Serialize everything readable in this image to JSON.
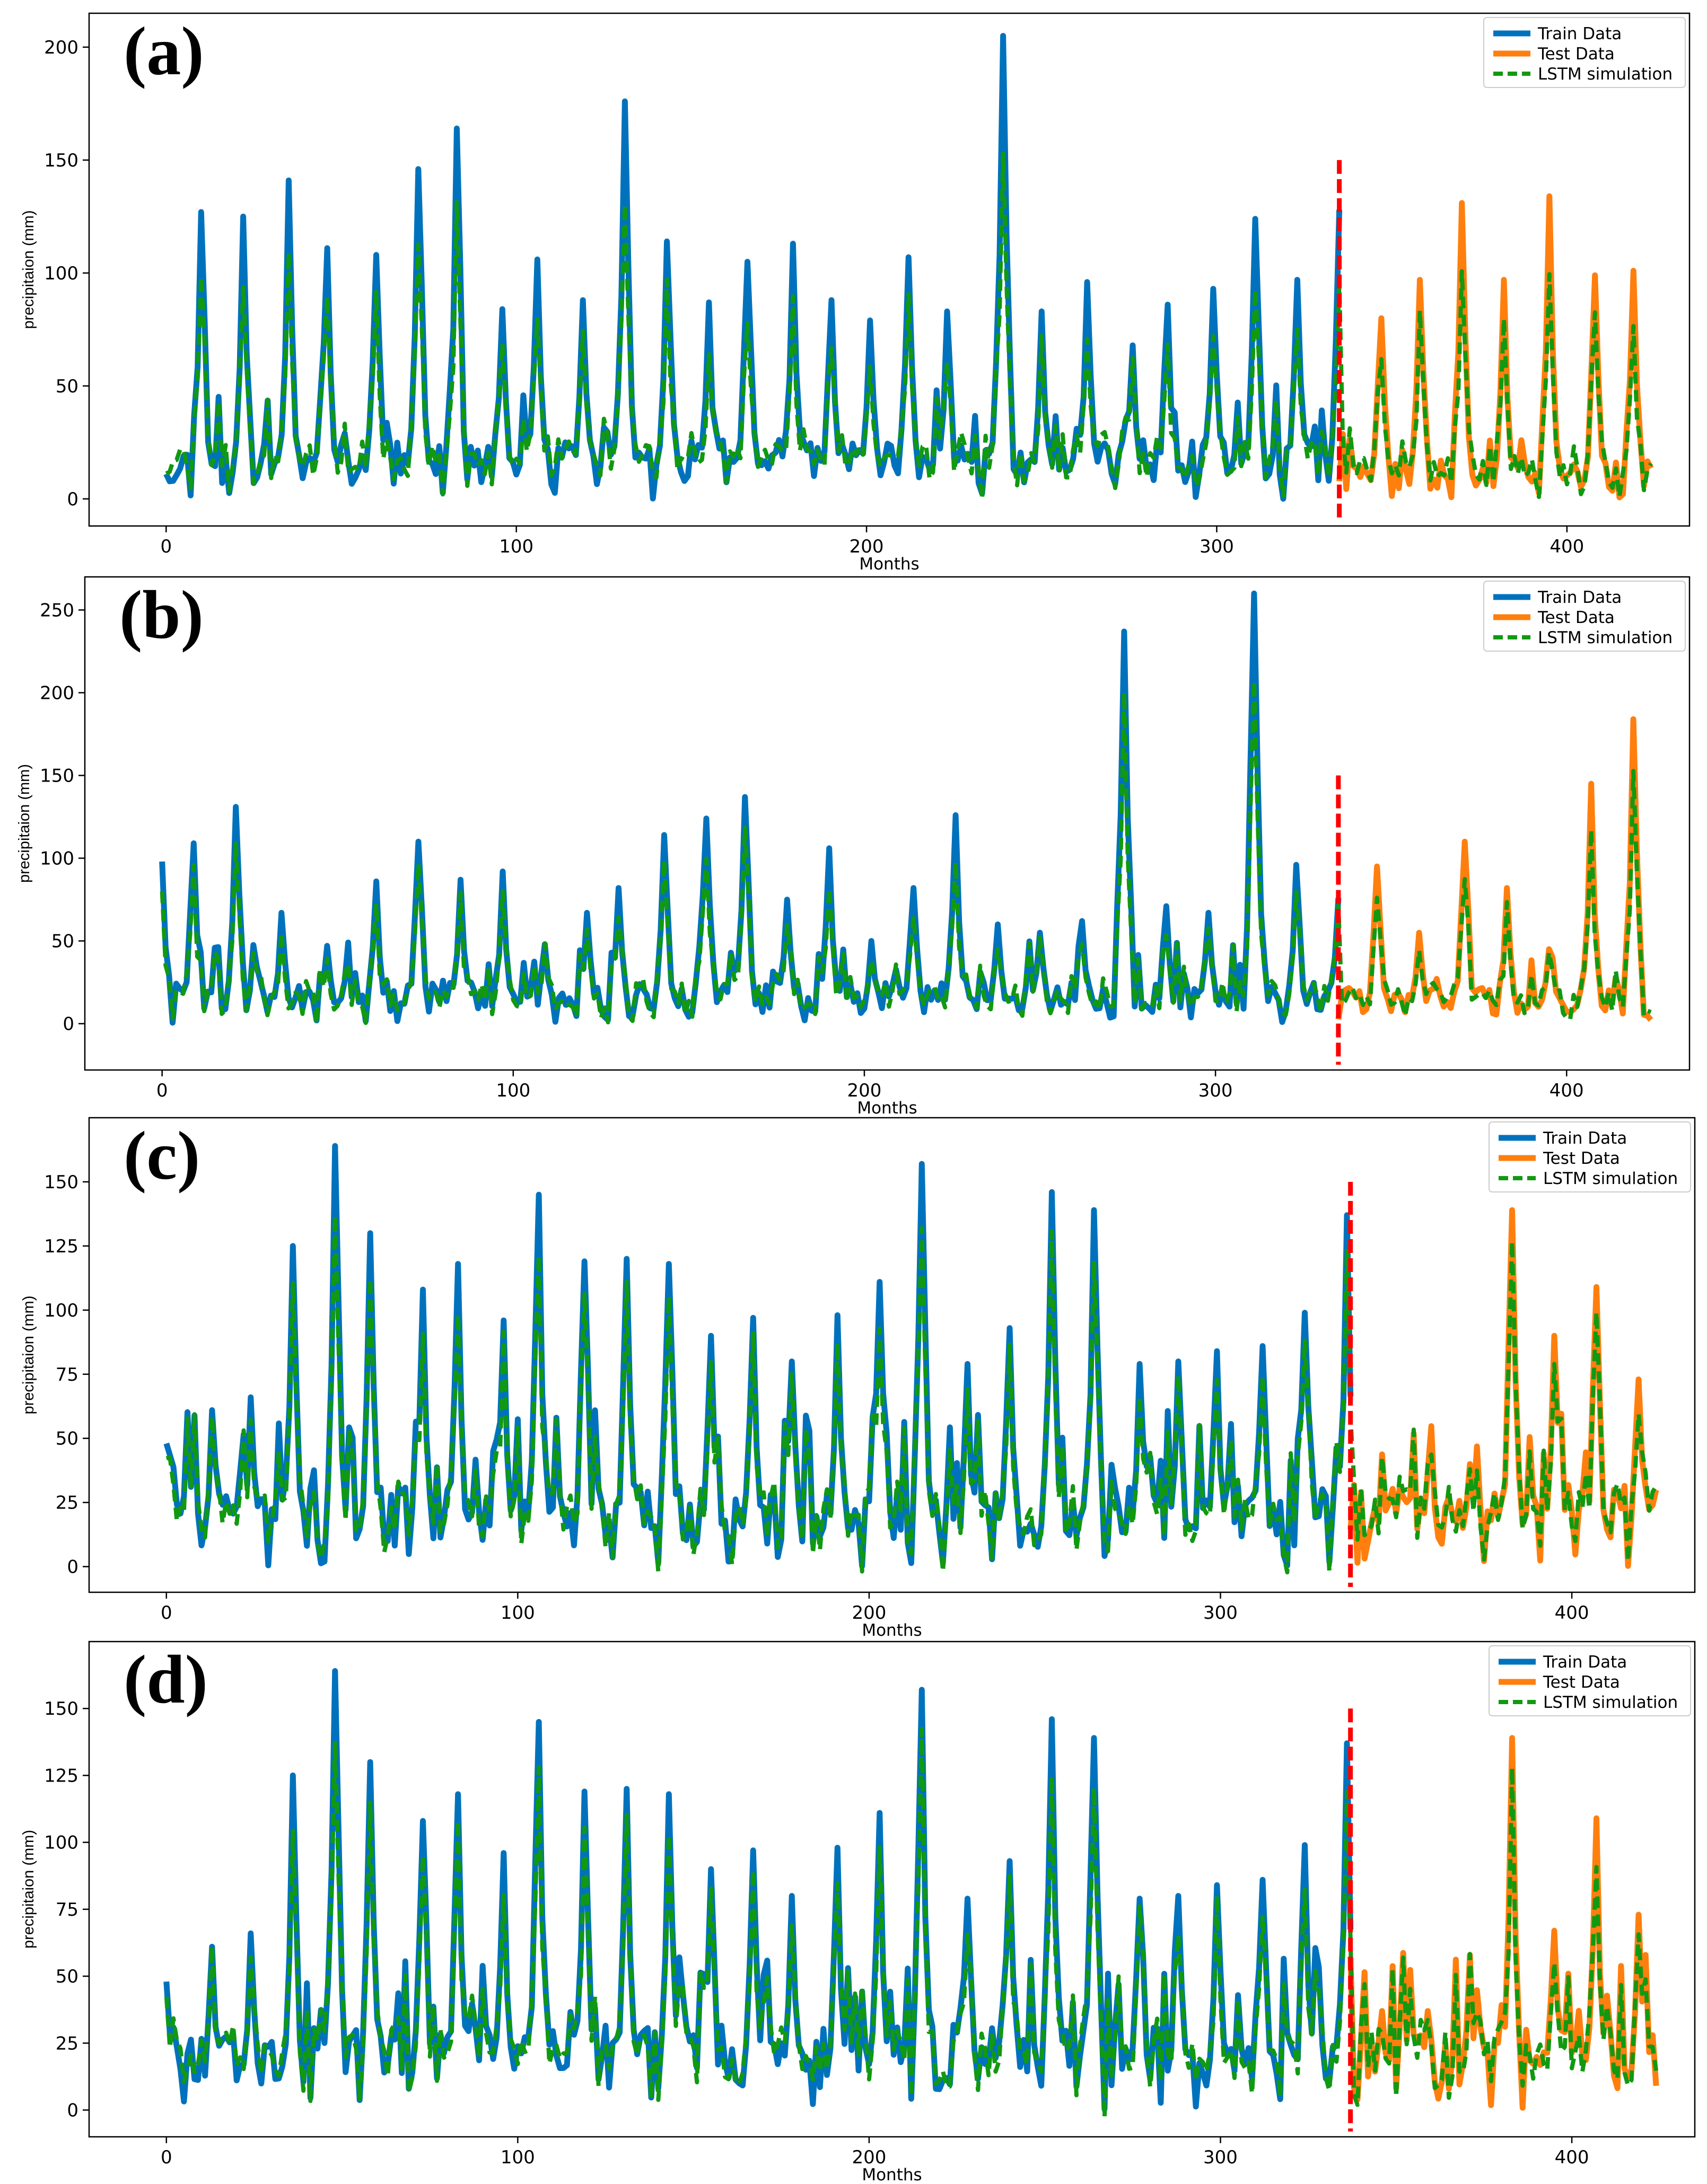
{
  "colors": {
    "train": "#0072BD",
    "test": "#FF7F0E",
    "lstm": "#119911",
    "split": "#FF0000"
  },
  "chart_data": [
    {
      "type": "line",
      "panel_label": "(a)",
      "xlabel": "Months",
      "ylabel": "precipitaion (mm)",
      "xlim": [
        -22,
        435
      ],
      "ylim": [
        -12,
        215
      ],
      "xticks": [
        0,
        100,
        200,
        300,
        400
      ],
      "yticks": [
        0,
        50,
        100,
        150,
        200
      ],
      "split_x": 335,
      "split_top": 150,
      "legend": [
        "Train Data",
        "Test Data",
        "LSTM simulation"
      ],
      "legend_loc": "upper right",
      "series": [
        {
          "name": "Train Data",
          "x_start": 0,
          "x_end": 335,
          "peaks": [
            [
              10,
              127
            ],
            [
              22,
              125
            ],
            [
              35,
              141
            ],
            [
              46,
              111
            ],
            [
              60,
              108
            ],
            [
              72,
              146
            ],
            [
              83,
              164
            ],
            [
              96,
              84
            ],
            [
              106,
              106
            ],
            [
              119,
              88
            ],
            [
              131,
              176
            ],
            [
              143,
              114
            ],
            [
              155,
              87
            ],
            [
              166,
              105
            ],
            [
              179,
              113
            ],
            [
              190,
              88
            ],
            [
              201,
              79
            ],
            [
              212,
              107
            ],
            [
              223,
              83
            ],
            [
              239,
              205
            ],
            [
              250,
              83
            ],
            [
              263,
              96
            ],
            [
              276,
              68
            ],
            [
              286,
              86
            ],
            [
              299,
              93
            ],
            [
              311,
              124
            ],
            [
              323,
              97
            ],
            [
              335,
              128
            ]
          ],
          "base": 18
        },
        {
          "name": "Test Data",
          "x_start": 335,
          "x_end": 424,
          "peaks": [
            [
              347,
              80
            ],
            [
              358,
              97
            ],
            [
              370,
              131
            ],
            [
              382,
              97
            ],
            [
              395,
              134
            ],
            [
              408,
              99
            ],
            [
              419,
              101
            ]
          ],
          "base": 12
        },
        {
          "name": "LSTM simulation",
          "x_start": 0,
          "x_end": 424,
          "scale": 0.75,
          "base": 20
        }
      ]
    },
    {
      "type": "line",
      "panel_label": "(b)",
      "xlabel": "Months",
      "ylabel": "precipitaion (mm)",
      "xlim": [
        -22,
        435
      ],
      "ylim": [
        -28,
        270
      ],
      "xticks": [
        0,
        100,
        200,
        300,
        400
      ],
      "yticks": [
        0,
        50,
        100,
        150,
        200,
        250
      ],
      "split_x": 335,
      "split_top": 150,
      "legend": [
        "Train Data",
        "Test Data",
        "LSTM simulation"
      ],
      "legend_loc": "upper right",
      "series": [
        {
          "name": "Train Data",
          "x_start": 0,
          "x_end": 335,
          "peaks": [
            [
              0,
              98
            ],
            [
              9,
              109
            ],
            [
              21,
              131
            ],
            [
              34,
              67
            ],
            [
              47,
              47
            ],
            [
              61,
              86
            ],
            [
              73,
              110
            ],
            [
              85,
              87
            ],
            [
              97,
              92
            ],
            [
              109,
              48
            ],
            [
              121,
              67
            ],
            [
              130,
              82
            ],
            [
              143,
              114
            ],
            [
              155,
              124
            ],
            [
              166,
              137
            ],
            [
              178,
              75
            ],
            [
              190,
              106
            ],
            [
              202,
              50
            ],
            [
              214,
              82
            ],
            [
              226,
              126
            ],
            [
              238,
              60
            ],
            [
              250,
              55
            ],
            [
              262,
              62
            ],
            [
              274,
              237
            ],
            [
              286,
              71
            ],
            [
              298,
              67
            ],
            [
              311,
              260
            ],
            [
              323,
              96
            ],
            [
              335,
              76
            ]
          ],
          "base": 18
        },
        {
          "name": "Test Data",
          "x_start": 335,
          "x_end": 424,
          "peaks": [
            [
              346,
              95
            ],
            [
              358,
              55
            ],
            [
              371,
              110
            ],
            [
              383,
              82
            ],
            [
              395,
              45
            ],
            [
              407,
              145
            ],
            [
              419,
              184
            ]
          ],
          "base": 15
        },
        {
          "name": "LSTM simulation",
          "x_start": 0,
          "x_end": 424,
          "scale": 0.8,
          "base": 18
        }
      ]
    },
    {
      "type": "line",
      "panel_label": "(c)",
      "xlabel": "Months",
      "ylabel": "precipitaion (mm)",
      "xlim": [
        -22,
        435
      ],
      "ylim": [
        -10,
        175
      ],
      "xticks": [
        0,
        100,
        200,
        300,
        400
      ],
      "yticks": [
        0,
        25,
        50,
        75,
        100,
        125,
        150
      ],
      "split_x": 337,
      "split_top": 150,
      "legend": [
        "Train Data",
        "Test Data",
        "LSTM simulation"
      ],
      "legend_loc": "upper right",
      "series": [
        {
          "name": "Train Data",
          "x_start": 0,
          "x_end": 337,
          "peaks": [
            [
              0,
              48
            ],
            [
              13,
              61
            ],
            [
              24,
              66
            ],
            [
              36,
              125
            ],
            [
              48,
              164
            ],
            [
              58,
              130
            ],
            [
              73,
              108
            ],
            [
              83,
              118
            ],
            [
              96,
              96
            ],
            [
              106,
              145
            ],
            [
              119,
              119
            ],
            [
              131,
              120
            ],
            [
              143,
              118
            ],
            [
              155,
              90
            ],
            [
              167,
              97
            ],
            [
              178,
              80
            ],
            [
              191,
              98
            ],
            [
              203,
              111
            ],
            [
              215,
              157
            ],
            [
              228,
              79
            ],
            [
              240,
              93
            ],
            [
              252,
              146
            ],
            [
              264,
              139
            ],
            [
              277,
              79
            ],
            [
              288,
              80
            ],
            [
              299,
              84
            ],
            [
              312,
              86
            ],
            [
              324,
              99
            ],
            [
              336,
              137
            ]
          ],
          "base": 22
        },
        {
          "name": "Test Data",
          "x_start": 337,
          "x_end": 424,
          "peaks": [
            [
              346,
              37
            ],
            [
              359,
              37
            ],
            [
              371,
              40
            ],
            [
              383,
              139
            ],
            [
              395,
              90
            ],
            [
              407,
              109
            ],
            [
              419,
              73
            ]
          ],
          "base": 22
        },
        {
          "name": "LSTM simulation",
          "x_start": 0,
          "x_end": 424,
          "scale": 0.85,
          "base": 22
        }
      ]
    },
    {
      "type": "line",
      "panel_label": "(d)",
      "xlabel": "Months",
      "ylabel": "precipitaion (mm)",
      "xlim": [
        -22,
        435
      ],
      "ylim": [
        -10,
        175
      ],
      "xticks": [
        0,
        100,
        200,
        300,
        400
      ],
      "yticks": [
        0,
        25,
        50,
        75,
        100,
        125,
        150
      ],
      "split_x": 337,
      "split_top": 150,
      "legend": [
        "Train Data",
        "Test Data",
        "LSTM simulation"
      ],
      "legend_loc": "upper right",
      "series": [
        {
          "name": "Train Data",
          "x_start": 0,
          "x_end": 337,
          "peaks": [
            [
              0,
              48
            ],
            [
              13,
              61
            ],
            [
              24,
              66
            ],
            [
              36,
              125
            ],
            [
              48,
              164
            ],
            [
              58,
              130
            ],
            [
              73,
              108
            ],
            [
              83,
              118
            ],
            [
              96,
              96
            ],
            [
              106,
              145
            ],
            [
              119,
              119
            ],
            [
              131,
              120
            ],
            [
              143,
              118
            ],
            [
              155,
              90
            ],
            [
              167,
              97
            ],
            [
              178,
              80
            ],
            [
              191,
              98
            ],
            [
              203,
              111
            ],
            [
              215,
              157
            ],
            [
              228,
              79
            ],
            [
              240,
              93
            ],
            [
              252,
              146
            ],
            [
              264,
              139
            ],
            [
              277,
              79
            ],
            [
              288,
              80
            ],
            [
              299,
              84
            ],
            [
              312,
              86
            ],
            [
              324,
              99
            ],
            [
              336,
              137
            ]
          ],
          "base": 22
        },
        {
          "name": "Test Data",
          "x_start": 337,
          "x_end": 424,
          "peaks": [
            [
              346,
              37
            ],
            [
              359,
              37
            ],
            [
              371,
              58
            ],
            [
              383,
              139
            ],
            [
              395,
              67
            ],
            [
              407,
              109
            ],
            [
              419,
              73
            ]
          ],
          "base": 22
        },
        {
          "name": "LSTM simulation",
          "x_start": 0,
          "x_end": 424,
          "scale": 0.85,
          "base": 22
        }
      ]
    }
  ]
}
